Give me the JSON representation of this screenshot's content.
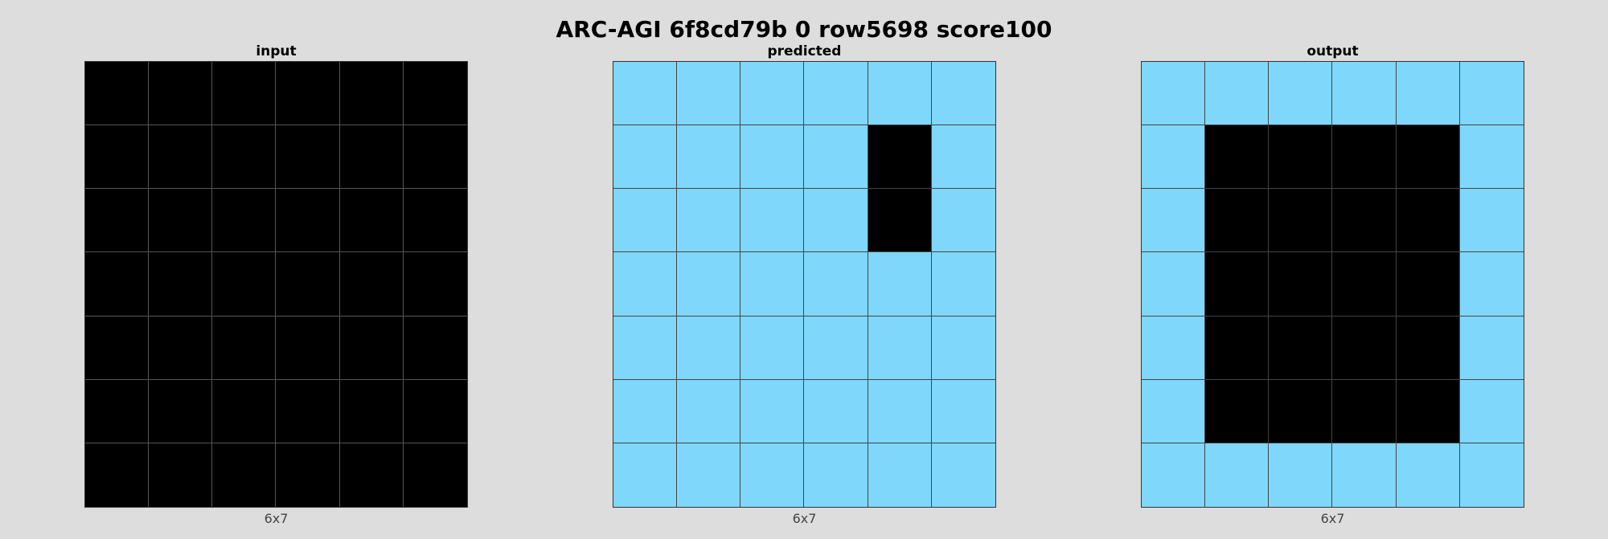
{
  "title": "ARC-AGI 6f8cd79b 0 row5698 score100",
  "colors": {
    "0": "#000000",
    "8": "#7fd7fc"
  },
  "panels": [
    {
      "label": "input",
      "dims": "6x7",
      "grid": [
        [
          0,
          0,
          0,
          0,
          0,
          0
        ],
        [
          0,
          0,
          0,
          0,
          0,
          0
        ],
        [
          0,
          0,
          0,
          0,
          0,
          0
        ],
        [
          0,
          0,
          0,
          0,
          0,
          0
        ],
        [
          0,
          0,
          0,
          0,
          0,
          0
        ],
        [
          0,
          0,
          0,
          0,
          0,
          0
        ],
        [
          0,
          0,
          0,
          0,
          0,
          0
        ]
      ]
    },
    {
      "label": "predicted",
      "dims": "6x7",
      "grid": [
        [
          8,
          8,
          8,
          8,
          8,
          8
        ],
        [
          8,
          8,
          8,
          8,
          0,
          8
        ],
        [
          8,
          8,
          8,
          8,
          0,
          8
        ],
        [
          8,
          8,
          8,
          8,
          8,
          8
        ],
        [
          8,
          8,
          8,
          8,
          8,
          8
        ],
        [
          8,
          8,
          8,
          8,
          8,
          8
        ],
        [
          8,
          8,
          8,
          8,
          8,
          8
        ]
      ]
    },
    {
      "label": "output",
      "dims": "6x7",
      "grid": [
        [
          8,
          8,
          8,
          8,
          8,
          8
        ],
        [
          8,
          0,
          0,
          0,
          0,
          8
        ],
        [
          8,
          0,
          0,
          0,
          0,
          8
        ],
        [
          8,
          0,
          0,
          0,
          0,
          8
        ],
        [
          8,
          0,
          0,
          0,
          0,
          8
        ],
        [
          8,
          0,
          0,
          0,
          0,
          8
        ],
        [
          8,
          8,
          8,
          8,
          8,
          8
        ]
      ]
    }
  ]
}
